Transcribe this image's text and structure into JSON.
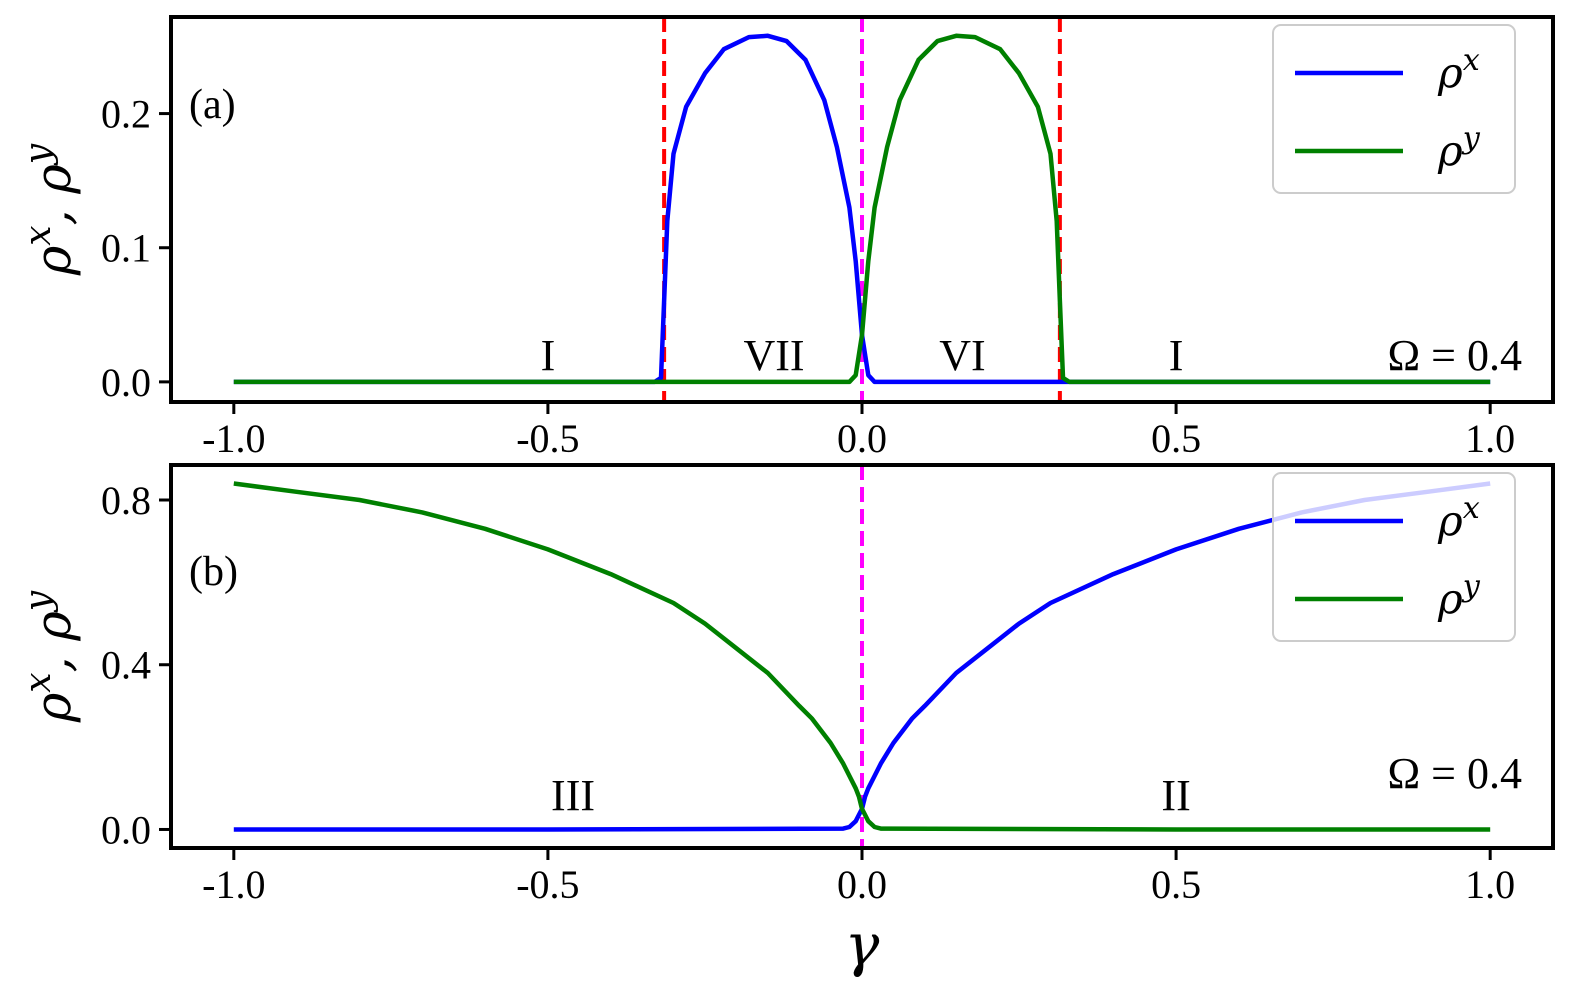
{
  "colors": {
    "rho_x": "#0000ff",
    "rho_y": "#008000",
    "vline_red": "#ff0000",
    "vline_magenta": "#ff00ff",
    "frame": "#000000"
  },
  "xlabel": "γ",
  "chart_data": [
    {
      "type": "line",
      "panel_label": "(a)",
      "ylabel": "ρˣ, ρʸ",
      "xlim": [
        -1.1,
        1.1
      ],
      "ylim": [
        -0.015,
        0.272
      ],
      "x_ticks": [
        "-1.0",
        "-0.5",
        "0.0",
        "0.5",
        "1.0"
      ],
      "y_ticks": [
        "0.0",
        "0.1",
        "0.2"
      ],
      "omega_label": "Ω = 0.4",
      "legend": {
        "placement": "top-right",
        "entries": [
          "ρˣ",
          "ρʸ"
        ]
      },
      "vlines": [
        {
          "x": -0.315,
          "color": "red"
        },
        {
          "x": 0.0,
          "color": "magenta"
        },
        {
          "x": 0.315,
          "color": "red"
        }
      ],
      "region_labels": [
        {
          "text": "I",
          "x": -0.5
        },
        {
          "text": "VII",
          "x": -0.14
        },
        {
          "text": "VI",
          "x": 0.16
        },
        {
          "text": "I",
          "x": 0.5
        }
      ],
      "series": [
        {
          "name": "ρˣ",
          "x": [
            -1.0,
            -0.5,
            -0.33,
            -0.32,
            -0.315,
            -0.31,
            -0.3,
            -0.28,
            -0.25,
            -0.22,
            -0.18,
            -0.15,
            -0.12,
            -0.09,
            -0.06,
            -0.04,
            -0.02,
            -0.01,
            0.0,
            0.01,
            0.02,
            0.5,
            1.0
          ],
          "y": [
            0.0,
            0.0,
            0.0,
            0.003,
            0.06,
            0.12,
            0.17,
            0.205,
            0.23,
            0.248,
            0.257,
            0.258,
            0.254,
            0.24,
            0.21,
            0.175,
            0.13,
            0.09,
            0.035,
            0.005,
            0.0,
            0.0,
            0.0
          ]
        },
        {
          "name": "ρʸ",
          "x": [
            -1.0,
            -0.5,
            -0.02,
            -0.01,
            0.0,
            0.01,
            0.02,
            0.04,
            0.06,
            0.09,
            0.12,
            0.15,
            0.18,
            0.22,
            0.25,
            0.28,
            0.3,
            0.31,
            0.315,
            0.32,
            0.33,
            0.5,
            1.0
          ],
          "y": [
            0.0,
            0.0,
            0.0,
            0.005,
            0.035,
            0.09,
            0.13,
            0.175,
            0.21,
            0.24,
            0.254,
            0.258,
            0.257,
            0.248,
            0.23,
            0.205,
            0.17,
            0.12,
            0.06,
            0.003,
            0.0,
            0.0,
            0.0
          ]
        }
      ]
    },
    {
      "type": "line",
      "panel_label": "(b)",
      "ylabel": "ρˣ, ρʸ",
      "xlim": [
        -1.1,
        1.1
      ],
      "ylim": [
        -0.045,
        0.885
      ],
      "x_ticks": [
        "-1.0",
        "-0.5",
        "0.0",
        "0.5",
        "1.0"
      ],
      "y_ticks": [
        "0.0",
        "0.4",
        "0.8"
      ],
      "omega_label": "Ω = 0.4",
      "legend": {
        "placement": "top-right",
        "entries": [
          "ρˣ",
          "ρʸ"
        ]
      },
      "vlines": [
        {
          "x": 0.0,
          "color": "magenta"
        }
      ],
      "region_labels": [
        {
          "text": "III",
          "x": -0.46
        },
        {
          "text": "II",
          "x": 0.5
        }
      ],
      "series": [
        {
          "name": "ρˣ",
          "x": [
            -1.0,
            -0.5,
            -0.03,
            -0.02,
            -0.01,
            0.0,
            0.005,
            0.01,
            0.02,
            0.03,
            0.05,
            0.08,
            0.1,
            0.15,
            0.2,
            0.25,
            0.3,
            0.4,
            0.5,
            0.6,
            0.7,
            0.8,
            0.9,
            1.0
          ],
          "y": [
            0.0,
            0.0,
            0.002,
            0.006,
            0.02,
            0.05,
            0.08,
            0.1,
            0.13,
            0.16,
            0.21,
            0.27,
            0.3,
            0.38,
            0.44,
            0.5,
            0.55,
            0.62,
            0.68,
            0.73,
            0.77,
            0.8,
            0.82,
            0.84
          ]
        },
        {
          "name": "ρʸ",
          "x": [
            -1.0,
            -0.9,
            -0.8,
            -0.7,
            -0.6,
            -0.5,
            -0.4,
            -0.3,
            -0.25,
            -0.2,
            -0.15,
            -0.1,
            -0.08,
            -0.05,
            -0.03,
            -0.02,
            -0.01,
            -0.005,
            0.0,
            0.01,
            0.02,
            0.03,
            0.5,
            1.0
          ],
          "y": [
            0.84,
            0.82,
            0.8,
            0.77,
            0.73,
            0.68,
            0.62,
            0.55,
            0.5,
            0.44,
            0.38,
            0.3,
            0.27,
            0.21,
            0.16,
            0.13,
            0.1,
            0.08,
            0.05,
            0.02,
            0.006,
            0.002,
            0.0,
            0.0
          ]
        }
      ]
    }
  ]
}
